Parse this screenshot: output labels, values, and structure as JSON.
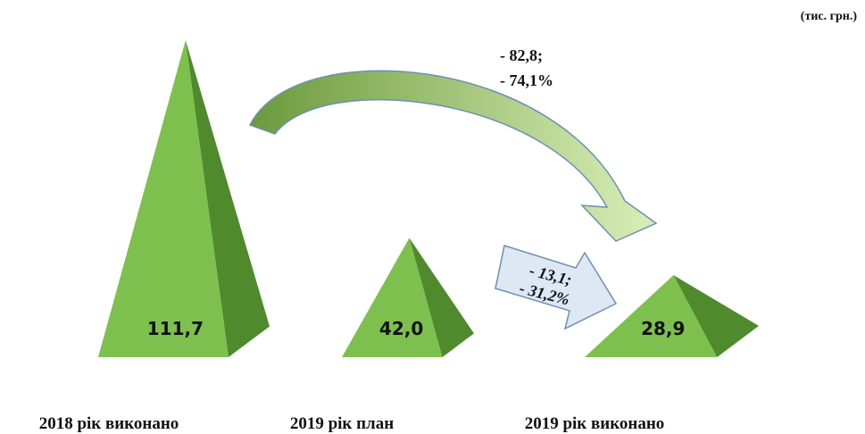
{
  "chart_data": {
    "type": "pyramid",
    "unit": "(тис. грн.)",
    "categories": [
      "2018 рік виконано",
      "2019 рік план",
      "2019 рік виконано"
    ],
    "values": [
      111.7,
      42.0,
      28.9
    ],
    "value_labels": [
      "111,7",
      "42,0",
      "28,9"
    ],
    "color": "#7dc04e",
    "side_color": "#4f8a2d",
    "annotations": [
      {
        "lines": [
          "-  82,8;",
          "- 74,1%"
        ]
      },
      {
        "lines": [
          "- 13,1;",
          "- 31,2%"
        ]
      }
    ]
  }
}
